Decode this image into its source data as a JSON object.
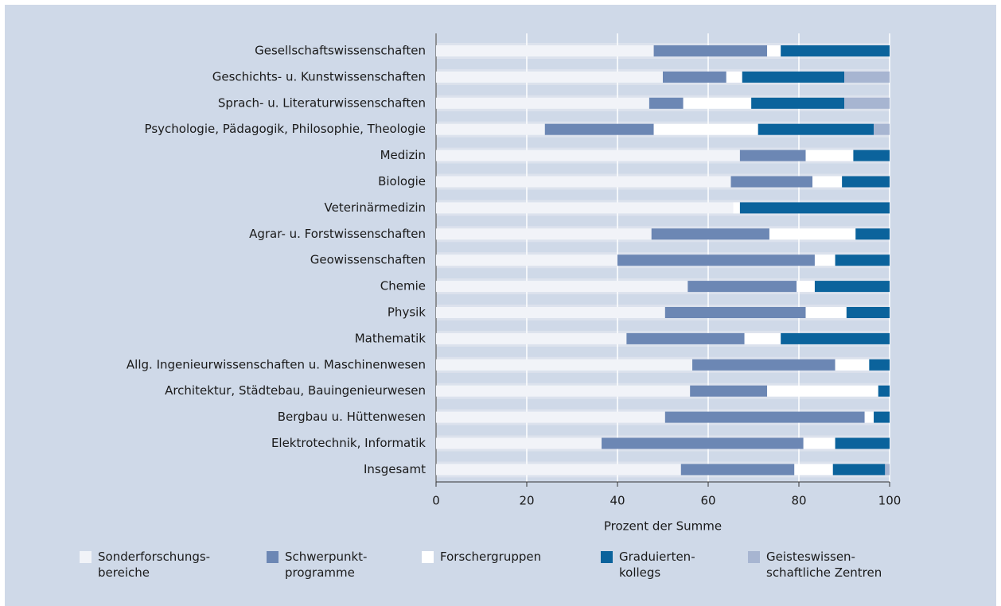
{
  "chart_data": {
    "type": "stacked_barh",
    "xlabel": "Prozent der Summe",
    "categories": [
      "Gesellschaftswissenschaften",
      "Geschichts- u. Kunstwissenschaften",
      "Sprach- u. Literaturwissenschaften",
      "Psychologie, Pädagogik, Philosophie, Theologie",
      "Medizin",
      "Biologie",
      "Veterinärmedizin",
      "Agrar- u. Forstwissenschaften",
      "Geowissenschaften",
      "Chemie",
      "Physik",
      "Mathematik",
      "Allg. Ingenieurwissenschaften u. Maschinenwesen",
      "Architektur, Städtebau, Bauingenieurwesen",
      "Bergbau u. Hüttenwesen",
      "Elektrotechnik, Informatik",
      "Insgesamt"
    ],
    "series": [
      {
        "name": "Sonderforschungs-\nbereiche",
        "color": "#f1f3f8",
        "values": [
          48,
          50,
          47,
          24,
          67,
          65,
          65.5,
          47.5,
          40,
          55.5,
          50.5,
          42,
          56.5,
          56,
          50.5,
          36.5,
          54
        ]
      },
      {
        "name": "Schwerpunkt-\nprogramme",
        "color": "#6c87b4",
        "values": [
          25,
          14,
          7.5,
          24,
          14.5,
          18,
          0,
          26,
          43.5,
          24,
          31,
          26,
          31.5,
          17,
          44,
          44.5,
          25
        ]
      },
      {
        "name": "Forschergruppen",
        "color": "#ffffff",
        "values": [
          3,
          3.5,
          15,
          23,
          10.5,
          6.5,
          1.5,
          19,
          4.5,
          4,
          9,
          8,
          7.5,
          24.5,
          2,
          7,
          8.5
        ]
      },
      {
        "name": "Graduierten-\nkollegs",
        "color": "#0b639c",
        "values": [
          24,
          22.5,
          20.5,
          25.5,
          8,
          10.5,
          33,
          7.5,
          12,
          16.5,
          9.5,
          24,
          4.5,
          2.5,
          3.5,
          12,
          11.5
        ]
      },
      {
        "name": "Geisteswissen-\nschaftliche Zentren",
        "color": "#a7b5d1",
        "values": [
          0,
          10,
          10,
          3.5,
          0,
          0,
          0,
          0,
          0,
          0,
          0,
          0,
          0,
          0,
          0,
          0,
          1
        ]
      }
    ],
    "xlim": [
      0,
      100
    ],
    "xticks": [
      0,
      20,
      40,
      60,
      80,
      100
    ],
    "grid": true
  }
}
